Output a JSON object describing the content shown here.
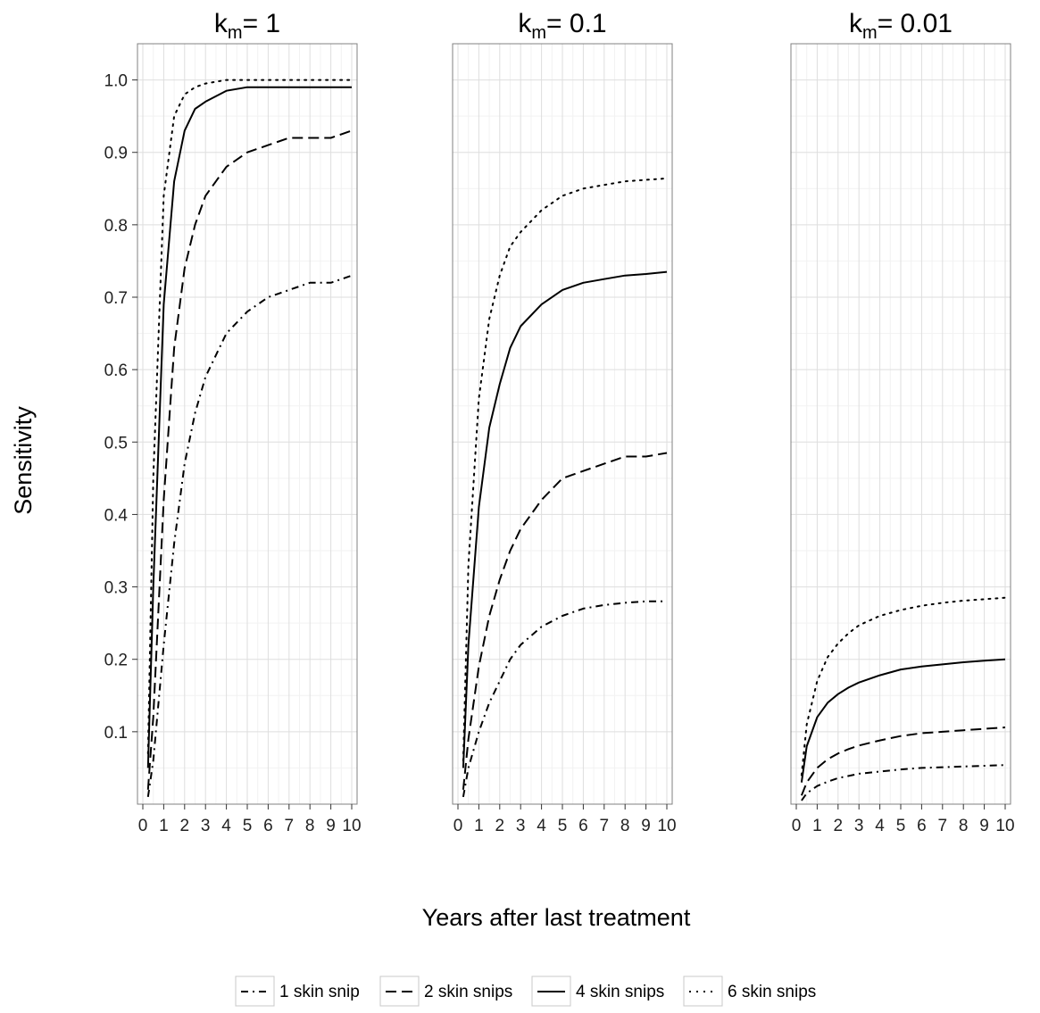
{
  "chart_data": {
    "type": "line",
    "xlabel": "Years after last treatment",
    "ylabel": "Sensitivity",
    "xlim": [
      0,
      10
    ],
    "ylim": [
      0,
      1.05
    ],
    "x_ticks": [
      0,
      1,
      2,
      3,
      4,
      5,
      6,
      7,
      8,
      9,
      10
    ],
    "y_ticks": [
      0.1,
      0.2,
      0.3,
      0.4,
      0.5,
      0.6,
      0.7,
      0.8,
      0.9,
      1.0
    ],
    "y_tick_labels": [
      "0.1",
      "0.2",
      "0.3",
      "0.4",
      "0.5",
      "0.6",
      "0.7",
      "0.8",
      "0.9",
      "1.0"
    ],
    "grid": true,
    "legend_position": "bottom",
    "legend": [
      {
        "label": "1 skin snip",
        "linestyle": "dashdot"
      },
      {
        "label": "2 skin snips",
        "linestyle": "dashed"
      },
      {
        "label": "4 skin snips",
        "linestyle": "solid"
      },
      {
        "label": "6 skin snips",
        "linestyle": "dotted"
      }
    ],
    "panels": [
      {
        "title_base": "k",
        "title_sub": "m",
        "title_value": "= 1",
        "x": [
          0.25,
          0.5,
          1,
          1.5,
          2,
          2.5,
          3,
          4,
          5,
          6,
          7,
          8,
          9,
          10
        ],
        "series": [
          {
            "name": "1 skin snip",
            "values": [
              0.01,
              0.06,
              0.22,
              0.36,
              0.47,
              0.54,
              0.59,
              0.65,
              0.68,
              0.7,
              0.71,
              0.72,
              0.72,
              0.73
            ]
          },
          {
            "name": "2 skin snips",
            "values": [
              0.02,
              0.12,
              0.42,
              0.63,
              0.74,
              0.8,
              0.84,
              0.88,
              0.9,
              0.91,
              0.92,
              0.92,
              0.92,
              0.93
            ]
          },
          {
            "name": "4 skin snips",
            "values": [
              0.05,
              0.3,
              0.69,
              0.86,
              0.93,
              0.96,
              0.97,
              0.985,
              0.99,
              0.99,
              0.99,
              0.99,
              0.99,
              0.99
            ]
          },
          {
            "name": "6 skin snips",
            "values": [
              0.07,
              0.45,
              0.84,
              0.95,
              0.98,
              0.99,
              0.995,
              1.0,
              1.0,
              1.0,
              1.0,
              1.0,
              1.0,
              1.0
            ]
          }
        ]
      },
      {
        "title_base": "k",
        "title_sub": "m",
        "title_value": "= 0.1",
        "x": [
          0.25,
          0.5,
          1,
          1.5,
          2,
          2.5,
          3,
          4,
          5,
          6,
          7,
          8,
          9,
          10
        ],
        "series": [
          {
            "name": "1 skin snip",
            "values": [
              0.01,
              0.05,
              0.1,
              0.14,
              0.17,
              0.2,
              0.22,
              0.245,
              0.26,
              0.27,
              0.275,
              0.278,
              0.28,
              0.28
            ]
          },
          {
            "name": "2 skin snips",
            "values": [
              0.02,
              0.09,
              0.19,
              0.26,
              0.31,
              0.35,
              0.38,
              0.42,
              0.45,
              0.46,
              0.47,
              0.48,
              0.48,
              0.485
            ]
          },
          {
            "name": "4 skin snips",
            "values": [
              0.05,
              0.22,
              0.41,
              0.52,
              0.58,
              0.63,
              0.66,
              0.69,
              0.71,
              0.72,
              0.725,
              0.73,
              0.732,
              0.735
            ]
          },
          {
            "name": "6 skin snips",
            "values": [
              0.06,
              0.33,
              0.56,
              0.67,
              0.73,
              0.77,
              0.79,
              0.82,
              0.84,
              0.85,
              0.855,
              0.86,
              0.862,
              0.864
            ]
          }
        ]
      },
      {
        "title_base": "k",
        "title_sub": "m",
        "title_value": "= 0.01",
        "x": [
          0.25,
          0.5,
          1,
          1.5,
          2,
          2.5,
          3,
          4,
          5,
          6,
          7,
          8,
          9,
          10
        ],
        "series": [
          {
            "name": "1 skin snip",
            "values": [
              0.005,
              0.015,
              0.025,
              0.031,
              0.036,
              0.039,
              0.042,
              0.045,
              0.048,
              0.05,
              0.051,
              0.052,
              0.053,
              0.054
            ]
          },
          {
            "name": "2 skin snips",
            "values": [
              0.012,
              0.03,
              0.05,
              0.062,
              0.07,
              0.076,
              0.081,
              0.088,
              0.094,
              0.098,
              0.1,
              0.102,
              0.104,
              0.106
            ]
          },
          {
            "name": "4 skin snips",
            "values": [
              0.03,
              0.08,
              0.12,
              0.14,
              0.152,
              0.161,
              0.168,
              0.178,
              0.186,
              0.19,
              0.193,
              0.196,
              0.198,
              0.2
            ]
          },
          {
            "name": "6 skin snips",
            "values": [
              0.04,
              0.11,
              0.17,
              0.203,
              0.222,
              0.236,
              0.247,
              0.26,
              0.268,
              0.274,
              0.278,
              0.281,
              0.283,
              0.285
            ]
          }
        ]
      }
    ]
  }
}
